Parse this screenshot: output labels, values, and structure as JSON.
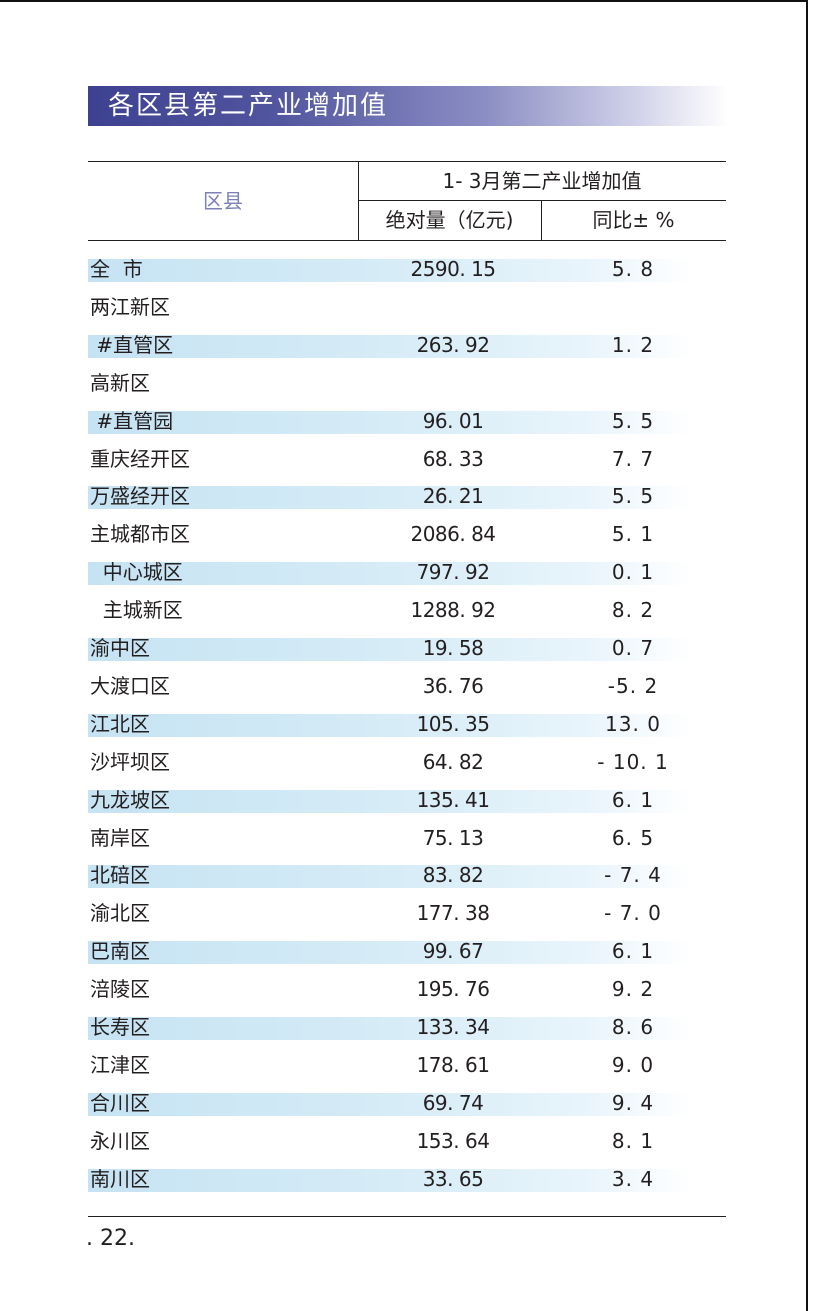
{
  "title": "各区县第二产业增加值",
  "table": {
    "header_region": "区县",
    "header_group": "1- 3月第二产业增加值",
    "header_abs": "绝对量（亿元)",
    "header_yoy": "同比± %",
    "rows": [
      {
        "name": "全  市",
        "abs": "2590. 15",
        "yoy": "5. 8",
        "shaded": true
      },
      {
        "name": "两江新区",
        "abs": "",
        "yoy": "",
        "shaded": false
      },
      {
        "name": " #直管区",
        "abs": "263. 92",
        "yoy": "1. 2",
        "shaded": true
      },
      {
        "name": "高新区",
        "abs": "",
        "yoy": "",
        "shaded": false
      },
      {
        "name": " #直管园",
        "abs": "96. 01",
        "yoy": "5. 5",
        "shaded": true
      },
      {
        "name": "重庆经开区",
        "abs": "68. 33",
        "yoy": "7. 7",
        "shaded": false
      },
      {
        "name": "万盛经开区",
        "abs": "26. 21",
        "yoy": "5. 5",
        "shaded": true
      },
      {
        "name": "主城都市区",
        "abs": "2086. 84",
        "yoy": "5. 1",
        "shaded": false
      },
      {
        "name": "  中心城区",
        "abs": "797. 92",
        "yoy": "0. 1",
        "shaded": true
      },
      {
        "name": "  主城新区",
        "abs": "1288. 92",
        "yoy": "8. 2",
        "shaded": false
      },
      {
        "name": "渝中区",
        "abs": "19. 58",
        "yoy": "0. 7",
        "shaded": true
      },
      {
        "name": "大渡口区",
        "abs": "36. 76",
        "yoy": "-5. 2",
        "shaded": false
      },
      {
        "name": "江北区",
        "abs": "105. 35",
        "yoy": "13. 0",
        "shaded": true
      },
      {
        "name": "沙坪坝区",
        "abs": "64. 82",
        "yoy": "- 10. 1",
        "shaded": false
      },
      {
        "name": "九龙坡区",
        "abs": "135. 41",
        "yoy": "6. 1",
        "shaded": true
      },
      {
        "name": "南岸区",
        "abs": "75. 13",
        "yoy": "6. 5",
        "shaded": false
      },
      {
        "name": "北碚区",
        "abs": "83. 82",
        "yoy": "- 7. 4",
        "shaded": true
      },
      {
        "name": "渝北区",
        "abs": "177. 38",
        "yoy": "- 7. 0",
        "shaded": false
      },
      {
        "name": "巴南区",
        "abs": "99. 67",
        "yoy": "6. 1",
        "shaded": true
      },
      {
        "name": "涪陵区",
        "abs": "195. 76",
        "yoy": "9. 2",
        "shaded": false
      },
      {
        "name": "长寿区",
        "abs": "133. 34",
        "yoy": "8. 6",
        "shaded": true
      },
      {
        "name": "江津区",
        "abs": "178. 61",
        "yoy": "9. 0",
        "shaded": false
      },
      {
        "name": "合川区",
        "abs": "69. 74",
        "yoy": "9. 4",
        "shaded": true
      },
      {
        "name": "永川区",
        "abs": "153. 64",
        "yoy": "8. 1",
        "shaded": false
      },
      {
        "name": "南川区",
        "abs": "33. 65",
        "yoy": "3. 4",
        "shaded": true
      }
    ]
  },
  "page_number": ". 22."
}
